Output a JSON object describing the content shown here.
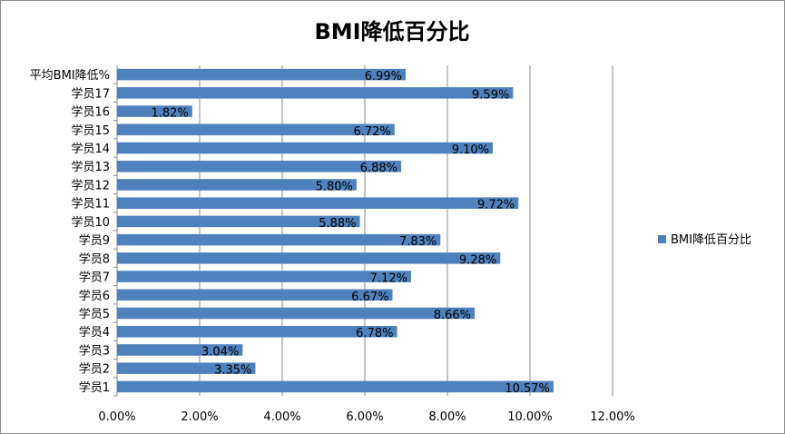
{
  "chart_data": {
    "type": "bar",
    "orientation": "horizontal",
    "title": "BMI降低百分比",
    "categories": [
      "学员1",
      "学员2",
      "学员3",
      "学员4",
      "学员5",
      "学员6",
      "学员7",
      "学员8",
      "学员9",
      "学员10",
      "学员11",
      "学员12",
      "学员13",
      "学员14",
      "学员15",
      "学员16",
      "学员17",
      "平均BMI降低%"
    ],
    "series": [
      {
        "name": "BMI降低百分比",
        "values": [
          10.57,
          3.35,
          3.04,
          6.78,
          8.66,
          6.67,
          7.12,
          9.28,
          7.83,
          5.88,
          9.72,
          5.8,
          6.88,
          9.1,
          6.72,
          1.82,
          9.59,
          6.99
        ],
        "labels": [
          "10.57%",
          "3.35%",
          "3.04%",
          "6.78%",
          "8.66%",
          "6.67%",
          "7.12%",
          "9.28%",
          "7.83%",
          "5.88%",
          "9.72%",
          "5.80%",
          "6.88%",
          "9.10%",
          "6.72%",
          "1.82%",
          "9.59%",
          "6.99%"
        ],
        "color": "#4f81bd"
      }
    ],
    "xlim": [
      0,
      12
    ],
    "x_ticks": [
      "0.00%",
      "2.00%",
      "4.00%",
      "6.00%",
      "8.00%",
      "10.00%",
      "12.00%"
    ],
    "grid": true,
    "legend_position": "right",
    "gridline_color": "#8c8c8c"
  }
}
